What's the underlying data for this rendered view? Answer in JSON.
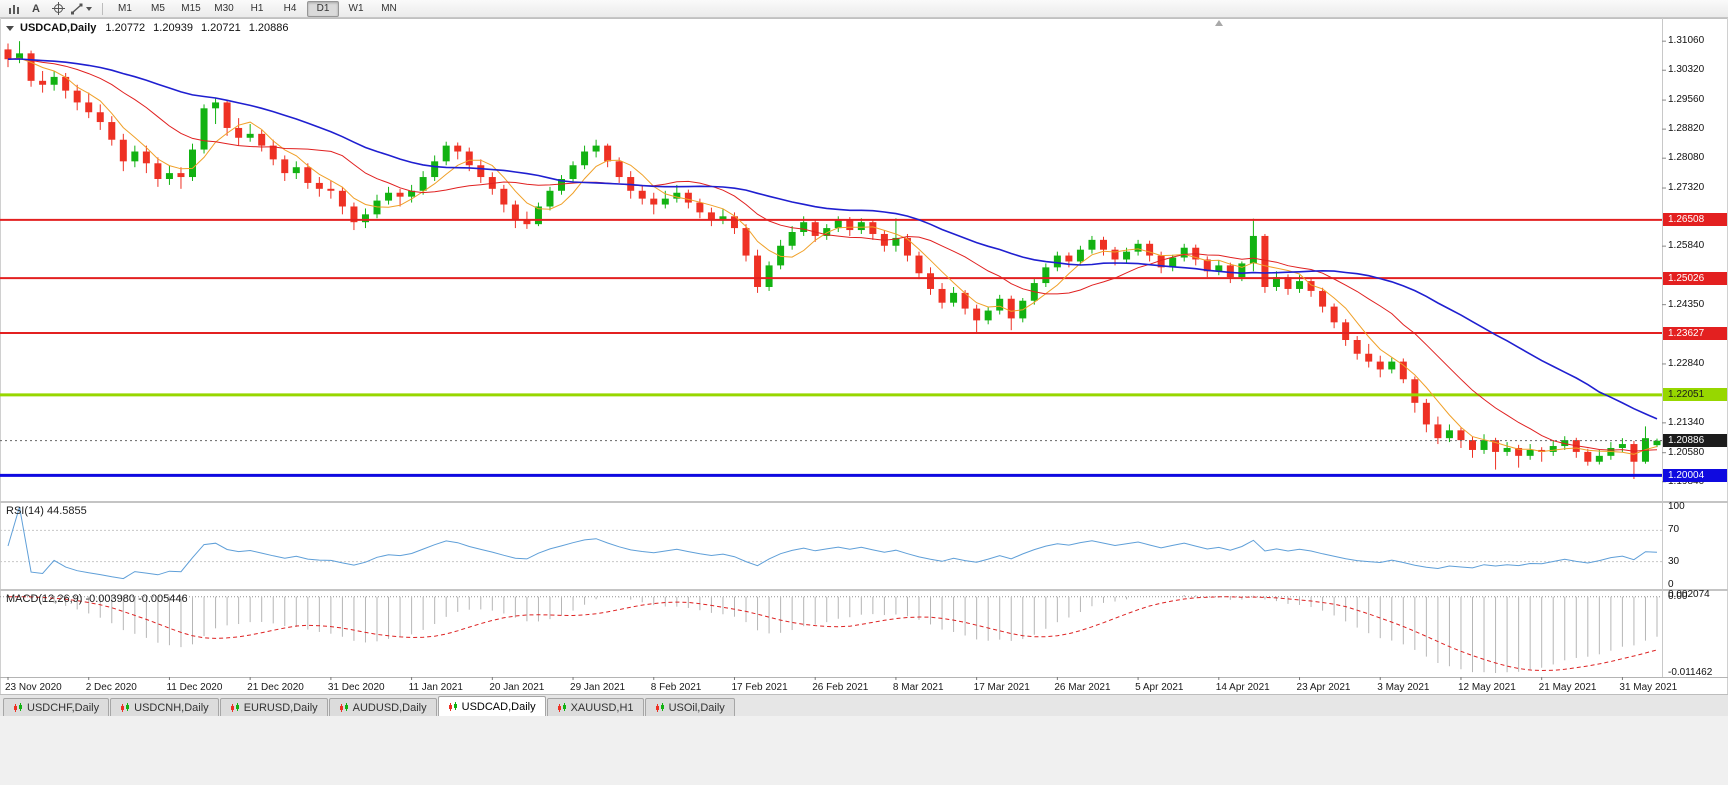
{
  "toolbar": {
    "cursor_glyph": "A",
    "timeframes": [
      "M1",
      "M5",
      "M15",
      "M30",
      "H1",
      "H4",
      "D1",
      "W1",
      "MN"
    ],
    "active_timeframe": "D1"
  },
  "chart": {
    "symbol_period": "USDCAD,Daily",
    "ohlc": {
      "open": "1.20772",
      "high": "1.20939",
      "low": "1.20721",
      "close": "1.20886"
    }
  },
  "rsi": {
    "label": "RSI(14) 44.5855",
    "period": 14,
    "value": "44.5855",
    "color": "#5f9fd8",
    "levels": [
      70,
      30
    ],
    "axis_labels": [
      "100",
      "70",
      "30",
      "0"
    ],
    "axis_values": [
      100,
      70,
      30,
      0
    ]
  },
  "macd": {
    "label": "MACD(12,26,9) -0.003980 -0.005446",
    "fast": 12,
    "slow": 26,
    "signal_period": 9,
    "histogram_color": "#b6b6b6",
    "signal_color": "#dd2222",
    "axis_labels": {
      "top": "0.002074",
      "zero": "0.00",
      "bottom": "-0.011462"
    }
  },
  "tabs": {
    "active": "USDCAD,Daily",
    "items": [
      {
        "label": "USDCHF,Daily"
      },
      {
        "label": "USDCNH,Daily"
      },
      {
        "label": "EURUSD,Daily"
      },
      {
        "label": "AUDUSD,Daily"
      },
      {
        "label": "USDCAD,Daily"
      },
      {
        "label": "XAUUSD,H1"
      },
      {
        "label": "USOil,Daily"
      }
    ]
  },
  "chart_data": {
    "type": "candlestick",
    "symbol": "USDCAD",
    "period": "Daily",
    "title": "USDCAD,Daily 1.20772 1.20939 1.20721 1.20886",
    "price_range": {
      "min": 1.1935,
      "max": 1.3165
    },
    "price_axis": {
      "ticks": [
        "1.31060",
        "1.30320",
        "1.29560",
        "1.28820",
        "1.28080",
        "1.27320",
        "1.26580",
        "1.25840",
        "1.25090",
        "1.24350",
        "1.23600",
        "1.22840",
        "1.22100",
        "1.21340",
        "1.20580",
        "1.19840"
      ],
      "hidden": [
        6,
        8,
        10,
        12
      ]
    },
    "x_labels": [
      "23 Nov 2020",
      "2 Dec 2020",
      "11 Dec 2020",
      "21 Dec 2020",
      "31 Dec 2020",
      "11 Jan 2021",
      "20 Jan 2021",
      "29 Jan 2021",
      "8 Feb 2021",
      "17 Feb 2021",
      "26 Feb 2021",
      "8 Mar 2021",
      "17 Mar 2021",
      "26 Mar 2021",
      "5 Apr 2021",
      "14 Apr 2021",
      "23 Apr 2021",
      "3 May 2021",
      "12 May 2021",
      "21 May 2021",
      "31 May 2021"
    ],
    "x_label_indices": [
      0,
      7,
      14,
      21,
      28,
      35,
      42,
      49,
      56,
      63,
      70,
      77,
      84,
      91,
      98,
      105,
      112,
      119,
      126,
      133,
      140
    ],
    "colors": {
      "up": "#12b212",
      "down": "#ee3124"
    },
    "moving_averages": [
      {
        "period": 5,
        "color": "#f0a028",
        "width": 1
      },
      {
        "period": 13,
        "color": "#e02020",
        "width": 1
      },
      {
        "period": 30,
        "color": "#1f1fd0",
        "width": 1.6
      }
    ],
    "hlines": [
      {
        "price": 1.26508,
        "label": "1.26508",
        "color": "#e32020",
        "text_color": "#ffffff",
        "width": 2
      },
      {
        "price": 1.25026,
        "label": "1.25026",
        "color": "#e32020",
        "text_color": "#ffffff",
        "width": 2
      },
      {
        "price": 1.23627,
        "label": "1.23627",
        "color": "#e32020",
        "text_color": "#ffffff",
        "width": 2
      },
      {
        "price": 1.22051,
        "label": "1.22051",
        "color": "#97d700",
        "text_color": "#1a1a1a",
        "width": 3
      },
      {
        "price": 1.20004,
        "label": "1.20004",
        "color": "#0f0ae0",
        "text_color": "#ffffff",
        "width": 3
      }
    ],
    "current_price": {
      "price": 1.20886,
      "label": "1.20886",
      "color": "#1c1c1c",
      "text_color": "#ffffff"
    },
    "candles": [
      [
        1.3085,
        1.31,
        1.304,
        1.306
      ],
      [
        1.306,
        1.3106,
        1.305,
        1.3075
      ],
      [
        1.3075,
        1.3082,
        1.299,
        1.3005
      ],
      [
        1.3005,
        1.303,
        1.2975,
        1.2995
      ],
      [
        1.2995,
        1.303,
        1.298,
        1.3015
      ],
      [
        1.3015,
        1.3025,
        1.296,
        1.298
      ],
      [
        1.298,
        1.2995,
        1.293,
        1.295
      ],
      [
        1.295,
        1.2975,
        1.291,
        1.2925
      ],
      [
        1.2925,
        1.2945,
        1.288,
        1.29
      ],
      [
        1.29,
        1.2915,
        1.284,
        1.2855
      ],
      [
        1.2855,
        1.287,
        1.2775,
        1.28
      ],
      [
        1.28,
        1.284,
        1.2785,
        1.2825
      ],
      [
        1.2825,
        1.284,
        1.277,
        1.2795
      ],
      [
        1.2795,
        1.281,
        1.2735,
        1.2755
      ],
      [
        1.2755,
        1.279,
        1.274,
        1.277
      ],
      [
        1.277,
        1.2785,
        1.273,
        1.276
      ],
      [
        1.276,
        1.2845,
        1.275,
        1.283
      ],
      [
        1.283,
        1.2945,
        1.282,
        1.2935
      ],
      [
        1.2935,
        1.296,
        1.2895,
        1.295
      ],
      [
        1.295,
        1.2955,
        1.2865,
        1.2885
      ],
      [
        1.2885,
        1.291,
        1.284,
        1.286
      ],
      [
        1.286,
        1.2895,
        1.285,
        1.287
      ],
      [
        1.287,
        1.288,
        1.2825,
        1.284
      ],
      [
        1.284,
        1.2855,
        1.279,
        1.2805
      ],
      [
        1.2805,
        1.2815,
        1.275,
        1.277
      ],
      [
        1.277,
        1.28,
        1.2755,
        1.2785
      ],
      [
        1.2785,
        1.2795,
        1.273,
        1.2745
      ],
      [
        1.2745,
        1.276,
        1.271,
        1.273
      ],
      [
        1.273,
        1.275,
        1.2705,
        1.2725
      ],
      [
        1.2725,
        1.2735,
        1.2665,
        1.2685
      ],
      [
        1.2685,
        1.2695,
        1.2625,
        1.2645
      ],
      [
        1.2645,
        1.268,
        1.263,
        1.2665
      ],
      [
        1.2665,
        1.2715,
        1.2655,
        1.27
      ],
      [
        1.27,
        1.2735,
        1.269,
        1.272
      ],
      [
        1.272,
        1.273,
        1.2685,
        1.271
      ],
      [
        1.271,
        1.274,
        1.2695,
        1.2725
      ],
      [
        1.2725,
        1.2775,
        1.2715,
        1.276
      ],
      [
        1.276,
        1.2815,
        1.275,
        1.28
      ],
      [
        1.28,
        1.285,
        1.279,
        1.284
      ],
      [
        1.284,
        1.2848,
        1.2805,
        1.2825
      ],
      [
        1.2825,
        1.2835,
        1.2775,
        1.279
      ],
      [
        1.279,
        1.2805,
        1.2745,
        1.276
      ],
      [
        1.276,
        1.2772,
        1.2715,
        1.273
      ],
      [
        1.273,
        1.274,
        1.267,
        1.269
      ],
      [
        1.269,
        1.27,
        1.263,
        1.265
      ],
      [
        1.265,
        1.2672,
        1.2628,
        1.264
      ],
      [
        1.264,
        1.2695,
        1.2635,
        1.2685
      ],
      [
        1.2685,
        1.2735,
        1.2675,
        1.2725
      ],
      [
        1.2725,
        1.2765,
        1.2715,
        1.2755
      ],
      [
        1.2755,
        1.28,
        1.2745,
        1.279
      ],
      [
        1.279,
        1.284,
        1.278,
        1.2825
      ],
      [
        1.2825,
        1.2855,
        1.281,
        1.284
      ],
      [
        1.284,
        1.2845,
        1.2785,
        1.28
      ],
      [
        1.28,
        1.281,
        1.2745,
        1.276
      ],
      [
        1.276,
        1.2775,
        1.2705,
        1.2725
      ],
      [
        1.2725,
        1.274,
        1.269,
        1.2705
      ],
      [
        1.2705,
        1.272,
        1.2665,
        1.269
      ],
      [
        1.269,
        1.2725,
        1.268,
        1.2705
      ],
      [
        1.2705,
        1.274,
        1.2695,
        1.272
      ],
      [
        1.272,
        1.2728,
        1.268,
        1.2695
      ],
      [
        1.2695,
        1.2705,
        1.2655,
        1.267
      ],
      [
        1.267,
        1.2682,
        1.2635,
        1.265
      ],
      [
        1.265,
        1.2678,
        1.264,
        1.266
      ],
      [
        1.266,
        1.267,
        1.2615,
        1.263
      ],
      [
        1.263,
        1.264,
        1.2545,
        1.256
      ],
      [
        1.256,
        1.2575,
        1.2465,
        1.248
      ],
      [
        1.248,
        1.2545,
        1.247,
        1.2535
      ],
      [
        1.2535,
        1.26,
        1.2525,
        1.2585
      ],
      [
        1.2585,
        1.2635,
        1.2575,
        1.262
      ],
      [
        1.262,
        1.266,
        1.261,
        1.2645
      ],
      [
        1.2645,
        1.2652,
        1.2595,
        1.261
      ],
      [
        1.261,
        1.264,
        1.26,
        1.263
      ],
      [
        1.263,
        1.266,
        1.262,
        1.265
      ],
      [
        1.265,
        1.2658,
        1.261,
        1.2625
      ],
      [
        1.2625,
        1.2655,
        1.2615,
        1.2645
      ],
      [
        1.2645,
        1.265,
        1.26,
        1.2615
      ],
      [
        1.2615,
        1.2625,
        1.257,
        1.2585
      ],
      [
        1.2585,
        1.2655,
        1.257,
        1.2605
      ],
      [
        1.2605,
        1.2615,
        1.2545,
        1.256
      ],
      [
        1.256,
        1.257,
        1.25,
        1.2515
      ],
      [
        1.2515,
        1.253,
        1.246,
        1.2475
      ],
      [
        1.2475,
        1.249,
        1.2425,
        1.244
      ],
      [
        1.244,
        1.248,
        1.243,
        1.2465
      ],
      [
        1.2465,
        1.2472,
        1.241,
        1.2425
      ],
      [
        1.2425,
        1.2435,
        1.2365,
        1.2395
      ],
      [
        1.2395,
        1.243,
        1.2385,
        1.242
      ],
      [
        1.242,
        1.246,
        1.241,
        1.245
      ],
      [
        1.245,
        1.2458,
        1.237,
        1.24
      ],
      [
        1.24,
        1.2452,
        1.239,
        1.2445
      ],
      [
        1.2445,
        1.25,
        1.2435,
        1.249
      ],
      [
        1.249,
        1.254,
        1.248,
        1.253
      ],
      [
        1.253,
        1.257,
        1.252,
        1.256
      ],
      [
        1.256,
        1.2568,
        1.253,
        1.2545
      ],
      [
        1.2545,
        1.2585,
        1.2535,
        1.2575
      ],
      [
        1.2575,
        1.261,
        1.2565,
        1.26
      ],
      [
        1.26,
        1.2608,
        1.256,
        1.2575
      ],
      [
        1.2575,
        1.2582,
        1.2535,
        1.255
      ],
      [
        1.255,
        1.258,
        1.254,
        1.257
      ],
      [
        1.257,
        1.26,
        1.256,
        1.259
      ],
      [
        1.259,
        1.2598,
        1.2545,
        1.256
      ],
      [
        1.256,
        1.257,
        1.2515,
        1.253
      ],
      [
        1.253,
        1.2562,
        1.252,
        1.2555
      ],
      [
        1.2555,
        1.259,
        1.2545,
        1.258
      ],
      [
        1.258,
        1.2588,
        1.2535,
        1.255
      ],
      [
        1.255,
        1.2558,
        1.2505,
        1.252
      ],
      [
        1.252,
        1.2548,
        1.251,
        1.2535
      ],
      [
        1.2535,
        1.2542,
        1.249,
        1.2505
      ],
      [
        1.2505,
        1.2545,
        1.2495,
        1.254
      ],
      [
        1.254,
        1.2654,
        1.252,
        1.261
      ],
      [
        1.261,
        1.2615,
        1.2465,
        1.248
      ],
      [
        1.248,
        1.252,
        1.247,
        1.2505
      ],
      [
        1.2505,
        1.2512,
        1.246,
        1.2475
      ],
      [
        1.2475,
        1.251,
        1.2465,
        1.2495
      ],
      [
        1.2495,
        1.2502,
        1.2455,
        1.247
      ],
      [
        1.247,
        1.2478,
        1.2415,
        1.243
      ],
      [
        1.243,
        1.2438,
        1.2375,
        1.239
      ],
      [
        1.239,
        1.2398,
        1.233,
        1.2345
      ],
      [
        1.2345,
        1.2355,
        1.2295,
        1.231
      ],
      [
        1.231,
        1.2335,
        1.2275,
        1.229
      ],
      [
        1.229,
        1.2305,
        1.225,
        1.227
      ],
      [
        1.227,
        1.23,
        1.226,
        1.229
      ],
      [
        1.229,
        1.2298,
        1.2235,
        1.2245
      ],
      [
        1.2245,
        1.2252,
        1.216,
        1.2185
      ],
      [
        1.2185,
        1.2195,
        1.211,
        1.213
      ],
      [
        1.213,
        1.215,
        1.208,
        1.2095
      ],
      [
        1.2095,
        1.213,
        1.2085,
        1.2115
      ],
      [
        1.2115,
        1.2122,
        1.207,
        1.209
      ],
      [
        1.209,
        1.2098,
        1.2045,
        1.2065
      ],
      [
        1.2065,
        1.2105,
        1.2055,
        1.209
      ],
      [
        1.209,
        1.2096,
        1.2015,
        1.206
      ],
      [
        1.206,
        1.2085,
        1.205,
        1.207
      ],
      [
        1.207,
        1.2078,
        1.202,
        1.205
      ],
      [
        1.205,
        1.208,
        1.204,
        1.2065
      ],
      [
        1.2065,
        1.2072,
        1.2035,
        1.206
      ],
      [
        1.206,
        1.209,
        1.205,
        1.2075
      ],
      [
        1.2075,
        1.21,
        1.2065,
        1.209
      ],
      [
        1.209,
        1.2096,
        1.2045,
        1.206
      ],
      [
        1.206,
        1.2068,
        1.2025,
        1.2035
      ],
      [
        1.2035,
        1.2065,
        1.2028,
        1.205
      ],
      [
        1.205,
        1.2085,
        1.204,
        1.207
      ],
      [
        1.207,
        1.2095,
        1.206,
        1.208
      ],
      [
        1.208,
        1.2088,
        1.1991,
        1.2035
      ],
      [
        1.2035,
        1.2125,
        1.203,
        1.2095
      ],
      [
        1.20772,
        1.20939,
        1.20721,
        1.20886
      ]
    ]
  }
}
